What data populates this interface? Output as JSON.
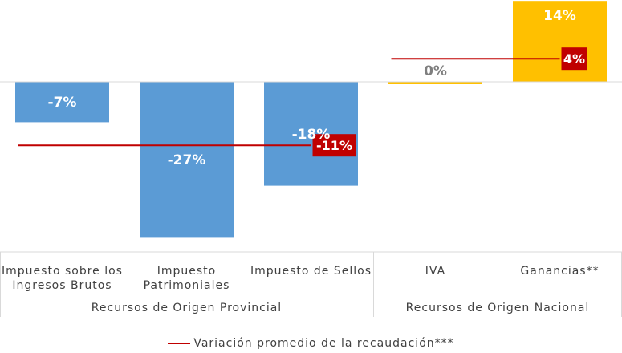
{
  "chart_data": {
    "type": "bar",
    "categories": [
      "Impuesto sobre los\nIngresos Brutos",
      "Impuesto\nPatrimoniales",
      "Impuesto de Sellos",
      "IVA",
      "Ganancias**"
    ],
    "values": [
      -7,
      -27,
      -18,
      0,
      14
    ],
    "value_labels": [
      "-7%",
      "-27%",
      "-18%",
      "0%",
      "14%"
    ],
    "bar_colors": [
      "#5b9bd5",
      "#5b9bd5",
      "#5b9bd5",
      "#ffc000",
      "#ffc000"
    ],
    "label_colors": [
      "#ffffff",
      "#ffffff",
      "#ffffff",
      "#7f7f7f",
      "#ffffff"
    ],
    "groups": [
      {
        "name": "Recursos de Origen Provincial",
        "categories": [
          0,
          1,
          2
        ]
      },
      {
        "name": "Recursos de Origen Nacional",
        "categories": [
          3,
          4
        ]
      }
    ],
    "averages": [
      {
        "group": 0,
        "value": -11,
        "label": "-11%"
      },
      {
        "group": 1,
        "value": 4,
        "label": "4%"
      }
    ],
    "average_color": "#c00000",
    "legend": {
      "label": "Variación promedio de la recaudación***",
      "position": "bottom"
    },
    "ylim": [
      -27,
      14
    ],
    "grid": false
  }
}
